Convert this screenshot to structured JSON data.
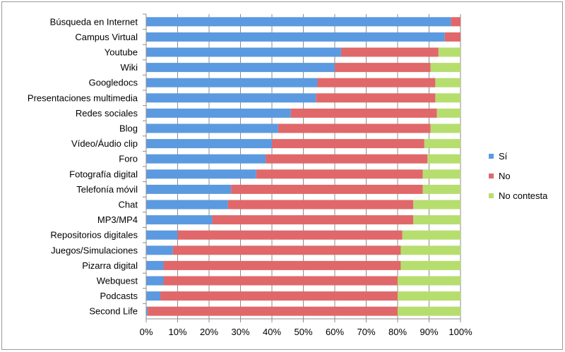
{
  "chart_data": {
    "type": "stacked-bar-horizontal-100",
    "categories": [
      "Búsqueda en Internet",
      "Campus Virtual",
      "Youtube",
      "Wiki",
      "Googledocs",
      "Presentaciones multimedia",
      "Redes sociales",
      "Blog",
      "Vídeo/Áudio clip",
      "Foro",
      "Fotografía digital",
      "Telefonía móvil",
      "Chat",
      "MP3/MP4",
      "Repositorios digitales",
      "Juegos/Simulaciones",
      "Pizarra digital",
      "Webquest",
      "Podcasts",
      "Second Life"
    ],
    "series": [
      {
        "name": "Sí",
        "color": "#5b9ae0",
        "values": [
          97,
          95,
          62,
          60,
          54.5,
          54,
          46,
          42,
          40,
          38,
          35,
          27,
          26,
          21,
          10,
          8.5,
          5.5,
          5.5,
          4.5,
          0.5
        ]
      },
      {
        "name": "No",
        "color": "#e0686a",
        "values": [
          3,
          5,
          31,
          30.5,
          37.5,
          38,
          46.5,
          48.5,
          48.5,
          51.5,
          53,
          61,
          59,
          64,
          71.5,
          72.5,
          75.5,
          74.5,
          75.5,
          79.5
        ]
      },
      {
        "name": "No contesta",
        "color": "#b6de6e",
        "values": [
          0,
          0,
          7,
          9.5,
          8,
          8,
          7.5,
          9.5,
          11.5,
          10.5,
          12,
          12,
          15,
          15,
          18.5,
          19,
          19,
          20,
          20,
          20
        ]
      }
    ],
    "xticks": [
      "0%",
      "10%",
      "20%",
      "30%",
      "40%",
      "50%",
      "60%",
      "70%",
      "80%",
      "90%",
      "100%"
    ],
    "xlim": [
      0,
      100
    ],
    "grid": true,
    "legend": "right"
  }
}
